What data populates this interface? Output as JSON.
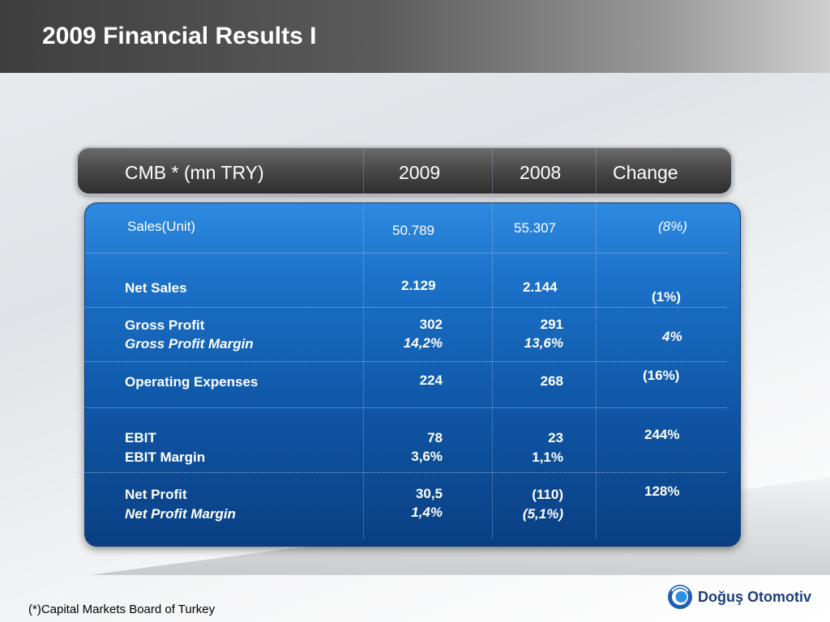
{
  "slide": {
    "title": "2009 Financial Results I",
    "footnote": "(*)Capital Markets Board of Turkey",
    "logo_text": "Doğuş Otomotiv"
  },
  "table": {
    "headers": [
      "CMB * (mn TRY)",
      "2009",
      "2008",
      "Change"
    ],
    "rows": [
      {
        "label": "Sales(Unit)",
        "v2009": "50.789",
        "v2008": "55.307",
        "change": "(8%)"
      },
      {
        "label": "Net Sales",
        "v2009": "2.129",
        "v2008": "2.144",
        "change": "(1%)"
      },
      {
        "label": "Gross Profit",
        "sublabel": "Gross Profit Margin",
        "v2009": "302",
        "v2009_sub": "14,2%",
        "v2008": "291",
        "v2008_sub": "13,6%",
        "change": "4%"
      },
      {
        "label": "Operating Expenses",
        "v2009": "224",
        "v2008": "268",
        "change": "(16%)"
      },
      {
        "label": "EBIT",
        "sublabel": "EBIT Margin",
        "v2009": "78",
        "v2009_sub": "3,6%",
        "v2008": "23",
        "v2008_sub": "1,1%",
        "change": "244%"
      },
      {
        "label": "Net Profit",
        "sublabel": "Net Profit Margin",
        "v2009": "30,5",
        "v2009_sub": "1,4%",
        "v2008": "(110)",
        "v2008_sub": "(5,1%)",
        "change": "128%"
      }
    ]
  },
  "colors": {
    "panel_blue": "#1a6fc6",
    "header_dark": "#3d3d3d",
    "logo_blue": "#1d3f7a"
  }
}
